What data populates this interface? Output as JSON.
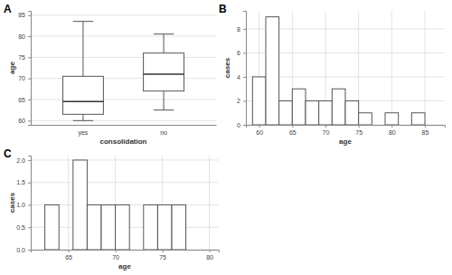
{
  "chart_data": [
    {
      "type": "box",
      "title": "A",
      "x_label": "consolidation",
      "y_label": "age",
      "categories": [
        "yes",
        "no"
      ],
      "boxes": [
        {
          "min": 60,
          "q1": 61.5,
          "median": 64.5,
          "q3": 70.5,
          "max": 83.5
        },
        {
          "min": 62.5,
          "q1": 67,
          "median": 71,
          "q3": 76,
          "max": 80.5
        }
      ],
      "ylim": [
        59,
        86
      ],
      "yticks": [
        60,
        65,
        70,
        75,
        80,
        85
      ],
      "grid": true
    },
    {
      "type": "histogram",
      "title": "B",
      "x_label": "age",
      "y_label": "cases",
      "bins": [
        59,
        61,
        63,
        65,
        67,
        69,
        71,
        73,
        75,
        77,
        79,
        81,
        83,
        85
      ],
      "values": [
        4,
        9,
        2,
        3,
        2,
        2,
        3,
        2,
        1,
        0,
        1,
        0,
        1
      ],
      "xlim": [
        58,
        88
      ],
      "xticks": [
        60,
        65,
        70,
        75,
        80,
        85
      ],
      "ylim": [
        0,
        9.5
      ],
      "yticks": [
        0,
        2,
        4,
        6,
        8
      ],
      "grid": true
    },
    {
      "type": "histogram",
      "title": "C",
      "x_label": "age",
      "y_label": "cases",
      "bins": [
        62.5,
        64,
        65.5,
        67,
        68.5,
        70,
        71.5,
        73,
        74.5,
        76,
        77.5
      ],
      "values": [
        1,
        0,
        2,
        1,
        1,
        1,
        0,
        1,
        1,
        1
      ],
      "xlim": [
        61,
        81
      ],
      "xticks": [
        65,
        70,
        75,
        80
      ],
      "ylim": [
        0,
        2.1
      ],
      "yticks": [
        {
          "value": 0,
          "label": "0.0"
        },
        0.5,
        {
          "value": 1,
          "label": "1.0"
        },
        1.5,
        {
          "value": 2,
          "label": "2.0"
        }
      ],
      "grid": true
    }
  ]
}
